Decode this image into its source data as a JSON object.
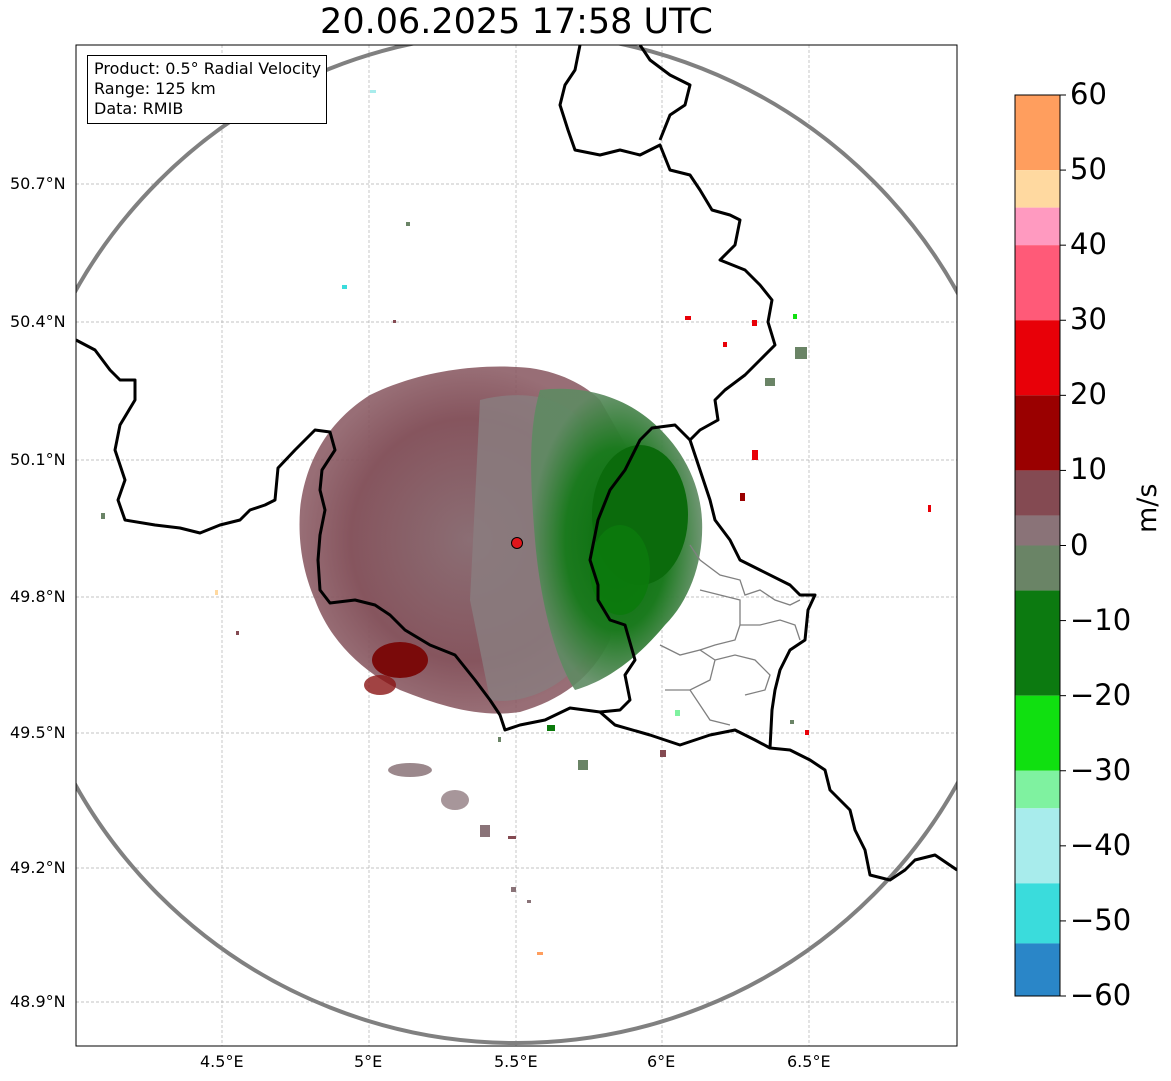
{
  "title": "20.06.2025 17:58 UTC",
  "info": {
    "product": "Product: 0.5° Radial Velocity",
    "range": "Range: 125 km",
    "source": "Data: RMIB"
  },
  "axes": {
    "lat_ticks": [
      "50.7°N",
      "50.4°N",
      "50.1°N",
      "49.8°N",
      "49.5°N",
      "49.2°N",
      "48.9°N"
    ],
    "lon_ticks": [
      "4.5°E",
      "5°E",
      "5.5°E",
      "6°E",
      "6.5°E"
    ]
  },
  "colorbar": {
    "unit": "m/s",
    "ticks": [
      "60",
      "50",
      "40",
      "30",
      "20",
      "10",
      "0",
      "−10",
      "−20",
      "−30",
      "−40",
      "−50",
      "−60"
    ],
    "stops": [
      {
        "from": 50,
        "to": 60,
        "color": "#ff9e5e"
      },
      {
        "from": 45,
        "to": 50,
        "color": "#ffd9a0"
      },
      {
        "from": 40,
        "to": 45,
        "color": "#ff9ac0"
      },
      {
        "from": 30,
        "to": 40,
        "color": "#ff5a78"
      },
      {
        "from": 20,
        "to": 30,
        "color": "#e80008"
      },
      {
        "from": 10,
        "to": 20,
        "color": "#9a0000"
      },
      {
        "from": 4,
        "to": 10,
        "color": "#844a52"
      },
      {
        "from": 0,
        "to": 4,
        "color": "#8a7378"
      },
      {
        "from": -6,
        "to": 0,
        "color": "#6a8466"
      },
      {
        "from": -20,
        "to": -6,
        "color": "#0c7a10"
      },
      {
        "from": -30,
        "to": -20,
        "color": "#10e010"
      },
      {
        "from": -35,
        "to": -30,
        "color": "#7ff2a0"
      },
      {
        "from": -45,
        "to": -35,
        "color": "#a8ecec"
      },
      {
        "from": -53,
        "to": -45,
        "color": "#3adcdc"
      },
      {
        "from": -60,
        "to": -53,
        "color": "#2a86c8"
      }
    ]
  },
  "radar_site": "red-dot",
  "colors": {
    "range_ring": "#808080",
    "border": "#000000",
    "admin_border": "#808080",
    "site": "#e0161c"
  }
}
